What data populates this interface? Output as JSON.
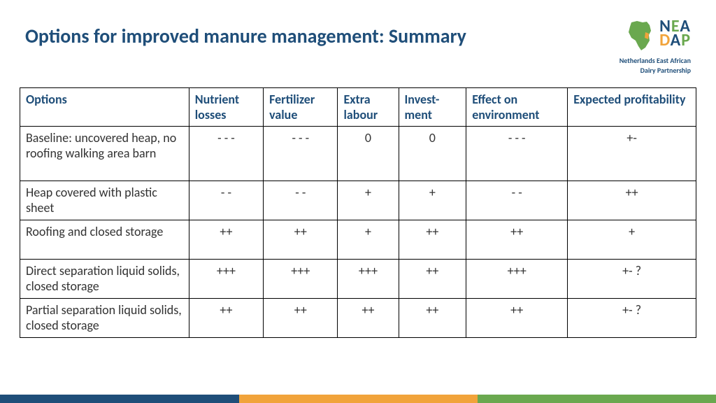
{
  "title": "Options for improved manure management: Summary",
  "logo": {
    "line1_chars": [
      "N",
      "E",
      "A"
    ],
    "line2_chars": [
      "D",
      "A",
      "P"
    ],
    "line1_colors": [
      "#1f4e79",
      "#6aa84f",
      "#1f4e79"
    ],
    "line2_colors": [
      "#f1a33a",
      "#1f4e79",
      "#6aa84f"
    ],
    "sub1": "Netherlands East African",
    "sub2": "Dairy Partnership"
  },
  "table": {
    "col_widths": [
      "25%",
      "11%",
      "11%",
      "9%",
      "10%",
      "15%",
      "19%"
    ],
    "headers": [
      "Options",
      "Nutrient losses",
      "Fertilizer value",
      "Extra labour",
      "Invest-ment",
      "Effect on environment",
      "Expected profitability"
    ],
    "row_heights": [
      "78px",
      "56px",
      "56px",
      "56px",
      "56px"
    ],
    "rows": [
      [
        "Baseline: uncovered heap, no roofing walking area barn",
        "- - -",
        "-  - -",
        "0",
        "0",
        "-  - -",
        "+-"
      ],
      [
        "Heap covered with plastic sheet",
        "- -",
        "- -",
        "+",
        "+",
        "- -",
        "++"
      ],
      [
        "Roofing and closed storage",
        "++",
        "++",
        "+",
        "++",
        "++",
        "+"
      ],
      [
        "Direct separation liquid solids, closed storage",
        "+++",
        "+++",
        "+++",
        "++",
        "+++",
        "+-  ?"
      ],
      [
        "Partial separation liquid solids, closed storage",
        "++",
        "++",
        "++",
        "++",
        "++",
        "+-  ?"
      ]
    ]
  },
  "footer": {
    "segments": [
      {
        "color": "#1f4e79",
        "width": "33.4%"
      },
      {
        "color": "#f1a33a",
        "width": "33.3%"
      },
      {
        "color": "#6aa84f",
        "width": "33.3%"
      }
    ]
  },
  "africa_svg": {
    "fill": "#6aa84f",
    "accent": "#f1a33a"
  }
}
